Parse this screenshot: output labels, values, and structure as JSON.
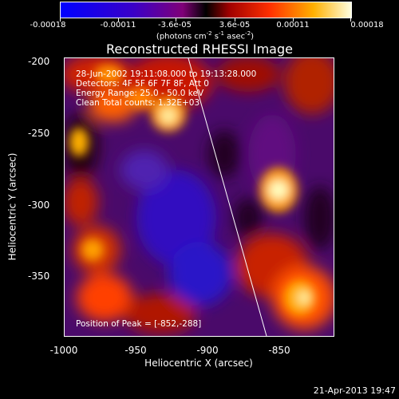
{
  "colorbar": {
    "ticks": [
      "-0.00018",
      "-0.00011",
      "-3.6e-05",
      "3.6e-05",
      "0.00011",
      "0.00018"
    ],
    "units_prefix": "(photons cm",
    "units_exp1": "-2",
    "units_mid": " s",
    "units_exp2": "-1",
    "units_mid2": " asec",
    "units_exp3": "-2",
    "units_suffix": ")"
  },
  "title": "Reconstructed RHESSI Image",
  "annotations": {
    "line1": "28-Jun-2002 19:11:08.000 to 19:13:28.000",
    "line2": "Detectors: 4F 5F 6F 7F 8F, Att 0",
    "line3": "Energy Range: 25.0 - 50.0 keV",
    "line4": "Clean    Total counts: 1.32E+03"
  },
  "peak": "Position of Peak = [-852,-288]",
  "yaxis": {
    "label": "Heliocentric Y (arcsec)",
    "ticks": [
      "-200",
      "-250",
      "-300",
      "-350"
    ]
  },
  "xaxis": {
    "label": "Heliocentric X (arcsec)",
    "ticks": [
      "-1000",
      "-950",
      "-900",
      "-850"
    ]
  },
  "footer_date": "21-Apr-2013 19:47"
}
